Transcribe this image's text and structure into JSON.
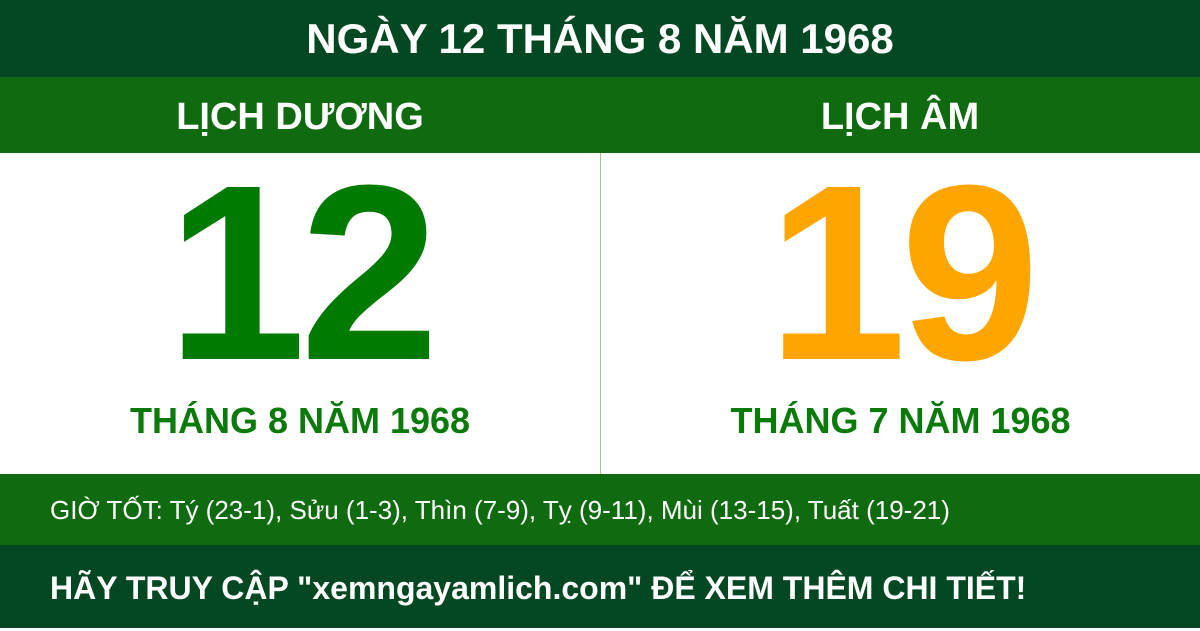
{
  "title": "NGÀY 12 THÁNG 8 NĂM 1968",
  "solar": {
    "label": "LỊCH DƯƠNG",
    "day": "12",
    "month_year": "THÁNG 8 NĂM 1968",
    "color": "#007a00"
  },
  "lunar": {
    "label": "LỊCH ÂM",
    "day": "19",
    "month_year": "THÁNG 7 NĂM 1968",
    "color": "#ffa500"
  },
  "good_hours": "GIỜ TỐT: Tý (23-1), Sửu (1-3), Thìn (7-9), Tỵ (9-11), Mùi (13-15), Tuất (19-21)",
  "footer": "HÃY TRUY CẬP \"xemngayamlich.com\" ĐỂ XEM THÊM CHI TIẾT!",
  "colors": {
    "dark_green": "#034822",
    "green": "#106b10"
  }
}
